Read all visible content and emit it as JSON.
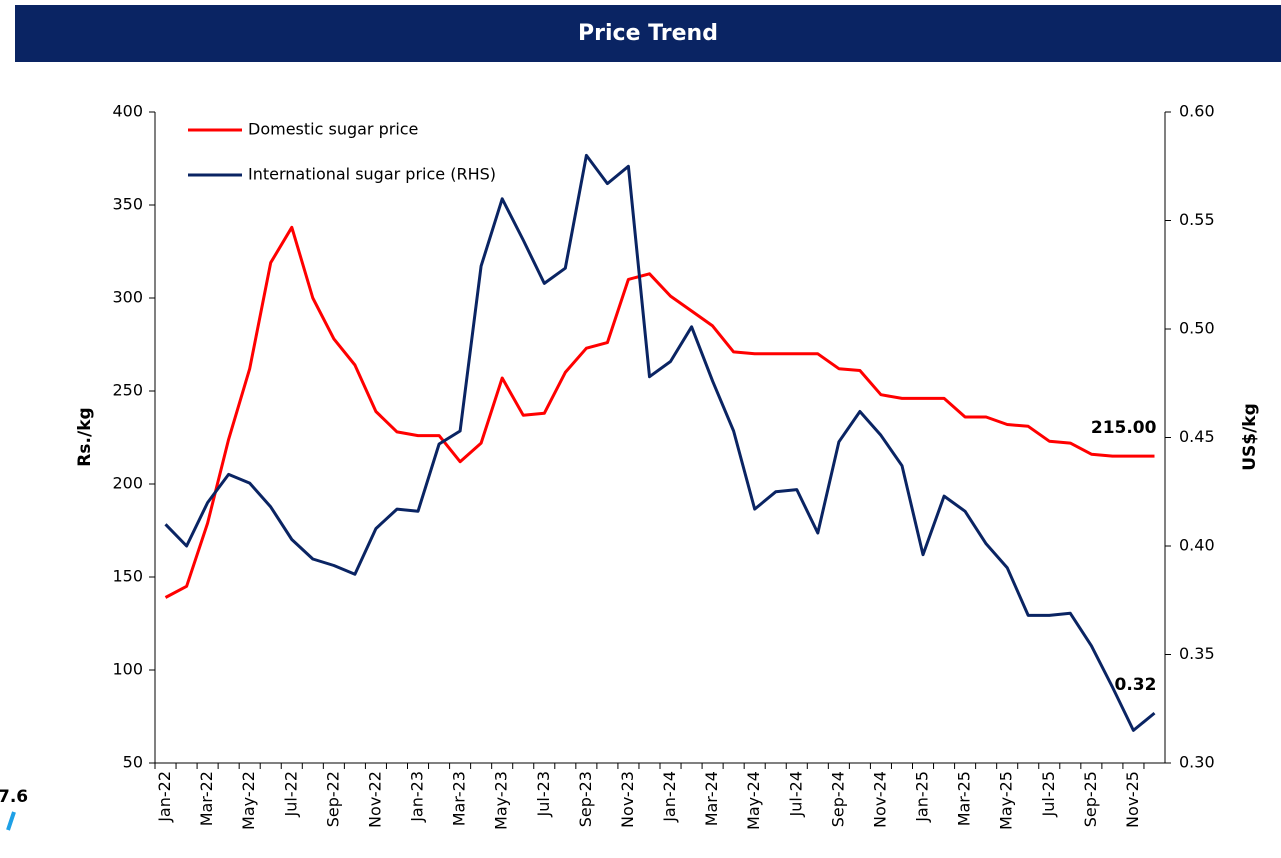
{
  "chart_data": {
    "type": "line",
    "title": "Price Trend",
    "categories": [
      "Jan-22",
      null,
      "Mar-22",
      null,
      "May-22",
      null,
      "Jul-22",
      null,
      "Sep-22",
      null,
      "Nov-22",
      null,
      "Jan-23",
      null,
      "Mar-23",
      null,
      "May-23",
      null,
      "Jul-23",
      null,
      "Sep-23",
      null,
      "Nov-23",
      null,
      "Jan-24",
      null,
      "Mar-24",
      null,
      "May-24",
      null,
      "Jul-24",
      null,
      "Sep-24",
      null,
      "Nov-24",
      null,
      "Jan-25",
      null,
      "Mar-25",
      null,
      "May-25",
      null,
      "Jul-25",
      null,
      "Sep-25",
      null,
      "Nov-25",
      null
    ],
    "y_label": "Rs./kg",
    "y2_label": "US$/kg",
    "ylim": [
      50,
      400
    ],
    "yticks": [
      50,
      100,
      150,
      200,
      250,
      300,
      350,
      400
    ],
    "y2lim": [
      0.3,
      0.6
    ],
    "y2ticks": [
      {
        "value": 0.3,
        "label": "0.30"
      },
      0.35,
      {
        "value": 0.4,
        "label": "0.40"
      },
      0.45,
      {
        "value": 0.5,
        "label": "0.50"
      },
      0.55,
      {
        "value": 0.6,
        "label": "0.60"
      }
    ],
    "legend": "top-left",
    "series": [
      {
        "name": "Domestic sugar price",
        "color": "#ff0000",
        "values": [
          139,
          145,
          179,
          224,
          262,
          319,
          338,
          300,
          278,
          264,
          239,
          228,
          226,
          226,
          212,
          222,
          257,
          237,
          238,
          260,
          273,
          276,
          310,
          313,
          301,
          293,
          285,
          271,
          270,
          270,
          270,
          270,
          262,
          261,
          248,
          246,
          246,
          246,
          236,
          236,
          232,
          231,
          223,
          222,
          216,
          215,
          215,
          215
        ],
        "value_labels": [
          null,
          null,
          null,
          null,
          null,
          null,
          null,
          null,
          null,
          null,
          null,
          null,
          null,
          null,
          null,
          null,
          null,
          null,
          null,
          null,
          null,
          null,
          null,
          null,
          null,
          null,
          null,
          null,
          null,
          null,
          null,
          null,
          null,
          null,
          null,
          null,
          null,
          null,
          null,
          null,
          null,
          null,
          null,
          null,
          null,
          null,
          null,
          "215.00"
        ]
      },
      {
        "name": "International sugar price (RHS)",
        "color": "#0a2463",
        "axis": "y2",
        "values": [
          0.41,
          0.4,
          0.42,
          0.433,
          0.429,
          0.418,
          0.403,
          0.394,
          0.391,
          0.387,
          0.408,
          0.417,
          0.416,
          0.447,
          0.453,
          0.529,
          0.56,
          0.541,
          0.521,
          0.528,
          0.58,
          0.567,
          0.575,
          0.478,
          0.485,
          0.501,
          0.476,
          0.453,
          0.417,
          0.425,
          0.426,
          0.406,
          0.448,
          0.462,
          0.451,
          0.437,
          0.396,
          0.423,
          0.416,
          0.401,
          0.39,
          0.368,
          0.368,
          0.369,
          0.354,
          0.335,
          0.315,
          0.323
        ],
        "value_labels": [
          null,
          null,
          null,
          null,
          null,
          null,
          null,
          null,
          null,
          null,
          null,
          null,
          null,
          null,
          null,
          null,
          null,
          null,
          null,
          null,
          null,
          null,
          null,
          null,
          null,
          null,
          null,
          null,
          null,
          null,
          null,
          null,
          null,
          null,
          null,
          null,
          null,
          null,
          null,
          null,
          null,
          null,
          null,
          null,
          null,
          null,
          null,
          "0.32"
        ]
      }
    ]
  },
  "side_text": "7.6"
}
